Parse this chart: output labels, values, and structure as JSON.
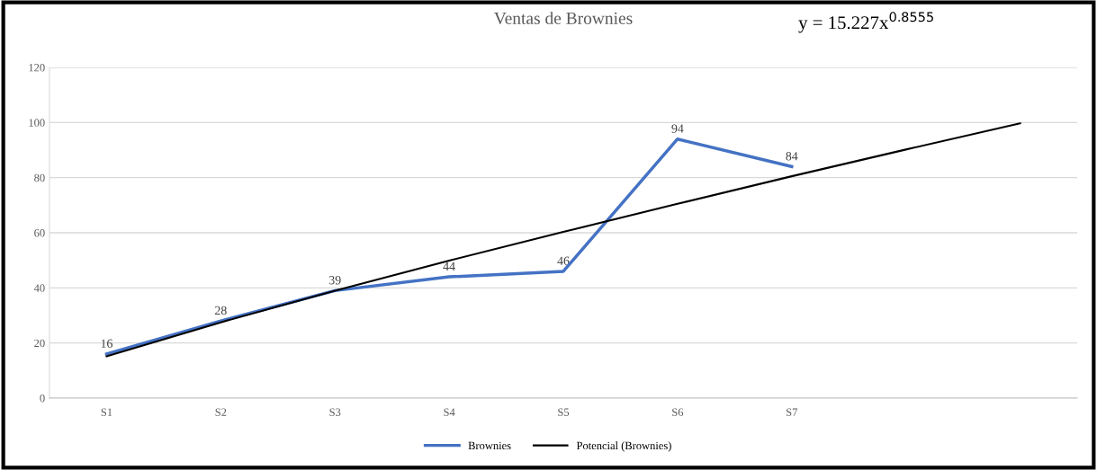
{
  "chart_data": {
    "type": "line",
    "title": "Ventas de Brownies",
    "categories": [
      "S1",
      "S2",
      "S3",
      "S4",
      "S5",
      "S6",
      "S7",
      null,
      null
    ],
    "series": [
      {
        "name": "Brownies",
        "color": "#4472c4",
        "values": [
          16,
          28,
          39,
          44,
          46,
          94,
          84,
          null,
          null
        ],
        "value_labels": [
          "16",
          "28",
          "39",
          "44",
          "46",
          "94",
          "84",
          null,
          null
        ]
      },
      {
        "name": "Potencial (Brownies)",
        "color": "#000000",
        "values": [
          15.2,
          27.5,
          39.0,
          49.9,
          60.3,
          70.5,
          80.5,
          90.2,
          99.7
        ]
      }
    ],
    "annotations": [
      "y = 15.227x$^{0.8555}$"
    ],
    "ylim": [
      0,
      120
    ],
    "yticks": [
      0,
      20,
      40,
      60,
      80,
      100,
      120
    ],
    "grid": "y",
    "legend": "bottom",
    "marker": "none",
    "line_style": "solid"
  }
}
